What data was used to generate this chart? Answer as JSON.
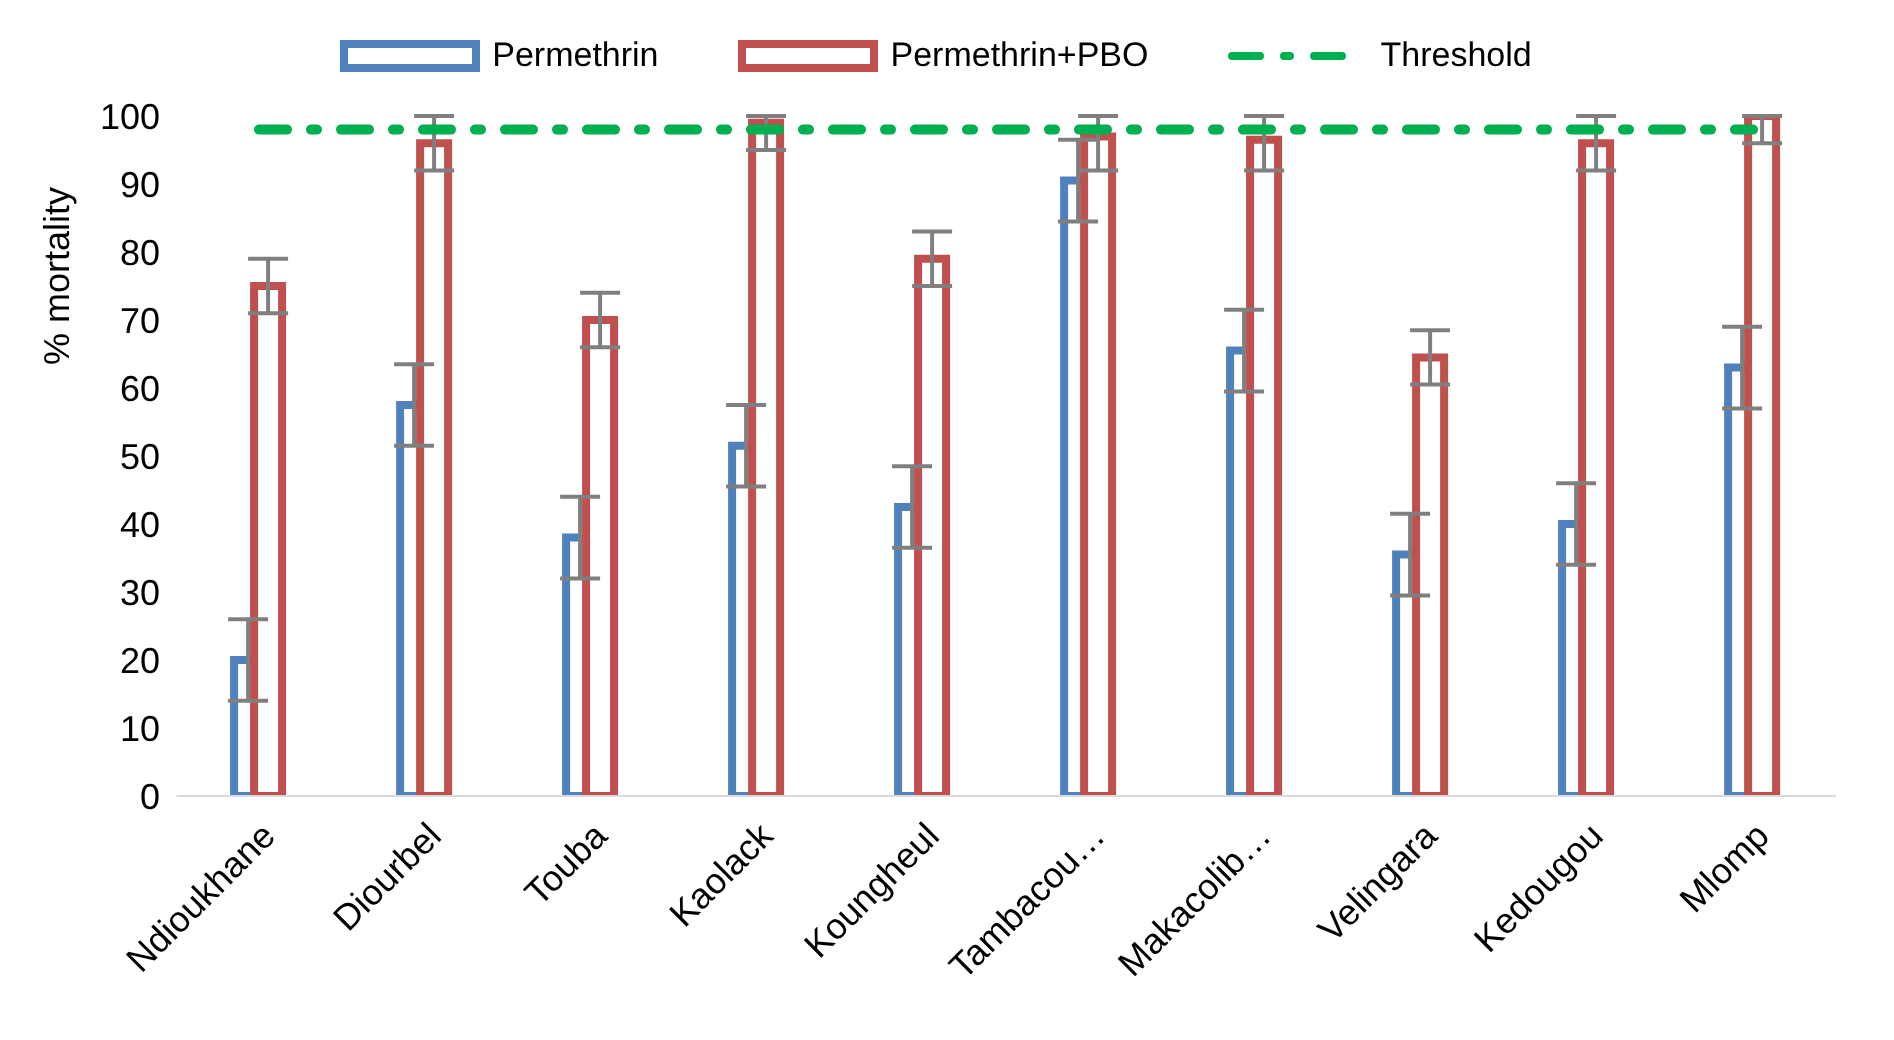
{
  "chart_data": {
    "type": "bar",
    "ylabel": "% mortality",
    "categories": [
      "Ndioukhane",
      "Diourbel",
      "Touba",
      "Kaolack",
      "Koungheul",
      "Tambacou…",
      "Makacolib…",
      "Velingara",
      "Kedougou",
      "Mlomp"
    ],
    "series": [
      {
        "name": "Permethrin",
        "color": "#4f81bd",
        "values": [
          20,
          57.5,
          38,
          51.5,
          42.5,
          90.5,
          65.5,
          35.5,
          40,
          63
        ],
        "errors": [
          6,
          6,
          6,
          6,
          6,
          6,
          6,
          6,
          6,
          6
        ]
      },
      {
        "name": "Permethrin+PBO",
        "color": "#c0504d",
        "values": [
          75,
          96,
          70,
          99,
          79,
          97,
          96.5,
          64.5,
          96,
          100
        ],
        "errors": [
          4,
          4,
          4,
          [
            95,
            100
          ],
          4,
          [
            92,
            100
          ],
          [
            92,
            100
          ],
          4,
          4,
          [
            96,
            100
          ]
        ]
      },
      {
        "name": "Threshold",
        "type": "line",
        "color": "#00b050",
        "line_style": "dashed",
        "marker": "none",
        "values": [
          98,
          98,
          98,
          98,
          98,
          98,
          98,
          98,
          98,
          98
        ]
      }
    ],
    "ylim": [
      0,
      100
    ],
    "yticks": [
      0,
      10,
      20,
      30,
      40,
      50,
      60,
      70,
      80,
      90,
      100
    ],
    "grid": false,
    "legend": "top"
  }
}
